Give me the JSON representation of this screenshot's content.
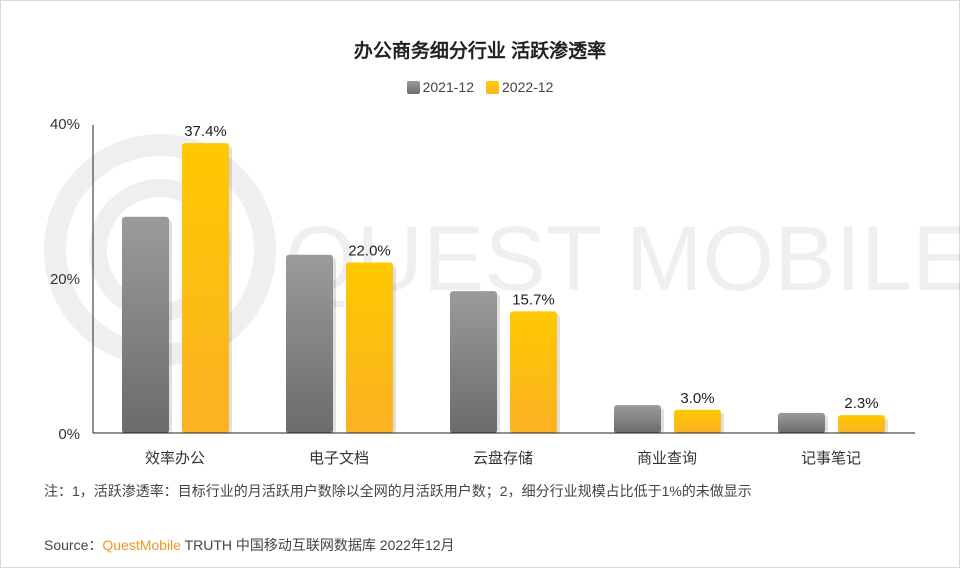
{
  "chart_data": {
    "type": "bar",
    "title": "办公商务细分行业 活跃渗透率",
    "categories": [
      "效率办公",
      "电子文档",
      "云盘存储",
      "商业查询",
      "记事笔记"
    ],
    "series": [
      {
        "name": "2021-12",
        "values": [
          27.9,
          23.0,
          18.3,
          3.6,
          2.6
        ],
        "color": "#8c8c8c",
        "labels_shown": false
      },
      {
        "name": "2022-12",
        "values": [
          37.4,
          22.0,
          15.7,
          3.0,
          2.3
        ],
        "color": "#ffc000",
        "labels_shown": true
      }
    ],
    "data_labels": [
      "37.4%",
      "22.0%",
      "15.7%",
      "3.0%",
      "2.3%"
    ],
    "yticks": [
      "0%",
      "20%",
      "40%"
    ],
    "ylim": [
      0,
      40
    ],
    "xlabel": "",
    "ylabel": "",
    "grid": false,
    "legend_position": "top-center"
  },
  "watermark": "QUEST MOBILE",
  "note": "注：1，活跃渗透率：目标行业的月活跃用户数除以全网的月活跃用户数；2，细分行业规模占比低于1%的未做显示",
  "source": {
    "prefix": "Source：",
    "brand": "QuestMobile",
    "rest": " TRUTH 中国移动互联网数据库 2022年12月"
  }
}
